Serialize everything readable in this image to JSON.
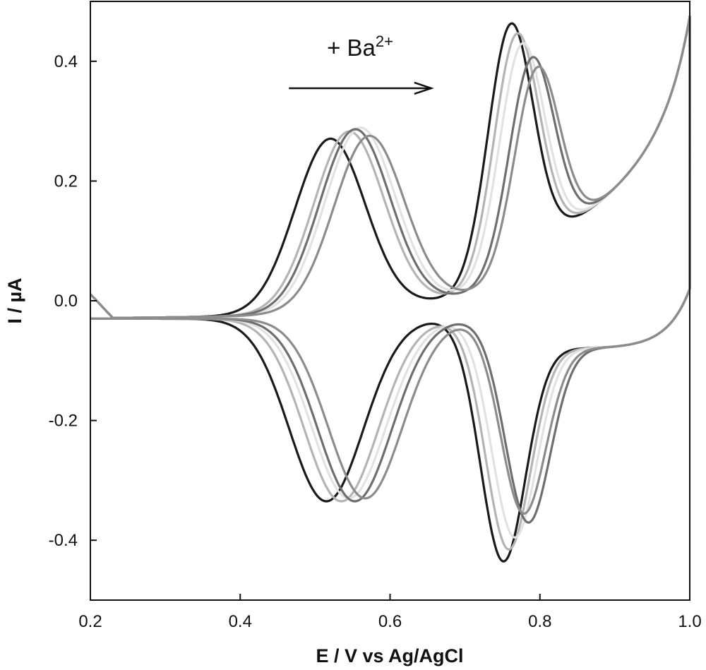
{
  "chart_data": {
    "type": "line",
    "xlabel": "E / V vs Ag/AgCl",
    "ylabel": "I / µA",
    "xlim": [
      0.2,
      1.0
    ],
    "ylim": [
      -0.5,
      0.5
    ],
    "xticks": [
      "0.2",
      "0.4",
      "0.6",
      "0.8",
      "1.0"
    ],
    "yticks": [
      "0.4",
      "0.2",
      "0.0",
      "-0.2",
      "-0.4"
    ],
    "xtick_values": [
      0.2,
      0.4,
      0.6,
      0.8,
      1.0
    ],
    "ytick_values": [
      0.4,
      0.2,
      0.0,
      -0.2,
      -0.4
    ],
    "annotation": {
      "prefix": "+ Ba",
      "superscript": "2+",
      "arrow": "right",
      "x_from": 0.465,
      "x_to": 0.655,
      "y": 0.355
    },
    "grid": false,
    "legend": "none",
    "series": [
      {
        "color": "#1a1a1a",
        "anodic_peaks": [
          [
            0.52,
            0.3
          ],
          [
            0.76,
            0.46
          ]
        ],
        "cathodic_peaks": [
          [
            0.515,
            -0.305
          ],
          [
            0.75,
            -0.43
          ]
        ]
      },
      {
        "color": "#b4b4b4",
        "anodic_peaks": [
          [
            0.545,
            0.31
          ],
          [
            0.768,
            0.44
          ]
        ],
        "cathodic_peaks": [
          [
            0.535,
            -0.305
          ],
          [
            0.757,
            -0.41
          ]
        ]
      },
      {
        "color": "#e2e2e2",
        "anodic_peaks": [
          [
            0.56,
            0.315
          ],
          [
            0.775,
            0.42
          ]
        ],
        "cathodic_peaks": [
          [
            0.545,
            -0.3
          ],
          [
            0.765,
            -0.39
          ]
        ]
      },
      {
        "color": "#6e6e6e",
        "anodic_peaks": [
          [
            0.553,
            0.313
          ],
          [
            0.788,
            0.39
          ]
        ],
        "cathodic_peaks": [
          [
            0.553,
            -0.305
          ],
          [
            0.783,
            -0.365
          ]
        ]
      },
      {
        "color": "#8c8c8c",
        "anodic_peaks": [
          [
            0.572,
            0.3
          ],
          [
            0.795,
            0.37
          ]
        ],
        "cathodic_peaks": [
          [
            0.567,
            -0.3
          ],
          [
            0.777,
            -0.35
          ]
        ]
      }
    ]
  }
}
